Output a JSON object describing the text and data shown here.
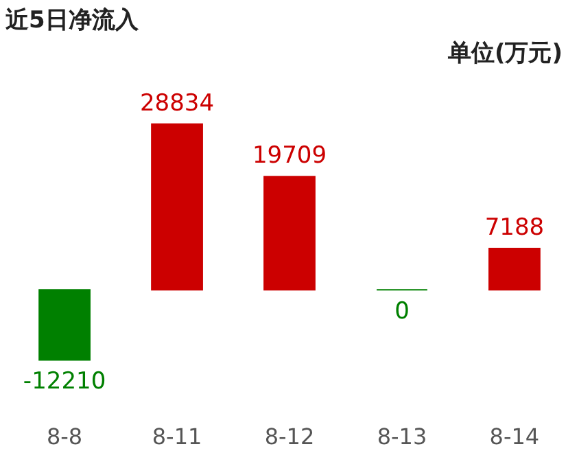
{
  "chart_data": {
    "type": "bar",
    "title": "近5日净流入",
    "annotations": [
      "单位(万元)"
    ],
    "categories": [
      "8-8",
      "8-11",
      "8-12",
      "8-13",
      "8-14"
    ],
    "values": [
      -12210,
      28834,
      19709,
      0,
      7188
    ],
    "colors": [
      "#008000",
      "#cc0000",
      "#cc0000",
      "#008000",
      "#cc0000"
    ],
    "data_labels": true
  }
}
